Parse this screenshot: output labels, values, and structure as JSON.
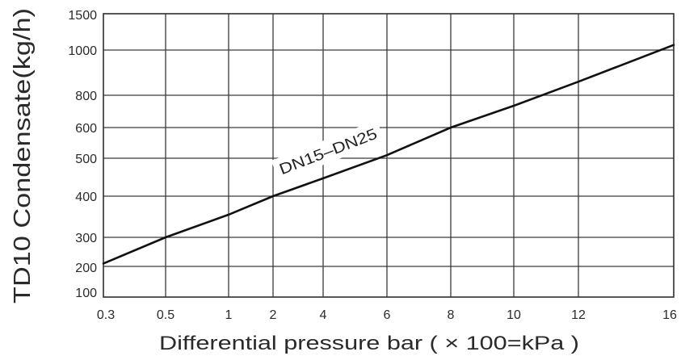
{
  "chart_data": {
    "type": "line",
    "xlabel": "Differential pressure bar ( × 100=kPa )",
    "ylabel": "TD10 Condensate(kg/h)",
    "x_ticks": [
      "0.3",
      "0.5",
      "1",
      "2",
      "4",
      "6",
      "8",
      "10",
      "12",
      "16"
    ],
    "y_ticks": [
      "100",
      "200",
      "300",
      "400",
      "500",
      "600",
      "800",
      "1000",
      "1500"
    ],
    "xlim": [
      0.3,
      16
    ],
    "ylim": [
      100,
      1500
    ],
    "x_scale": "non-uniform",
    "y_scale": "non-uniform",
    "grid": true,
    "series": [
      {
        "name": "DN15–DN25",
        "color": "#111111",
        "x": [
          0.3,
          0.5,
          1,
          2,
          4,
          6,
          8,
          10,
          12,
          16
        ],
        "y": [
          210,
          300,
          355,
          400,
          447,
          510,
          600,
          735,
          860,
          1070
        ]
      }
    ]
  }
}
